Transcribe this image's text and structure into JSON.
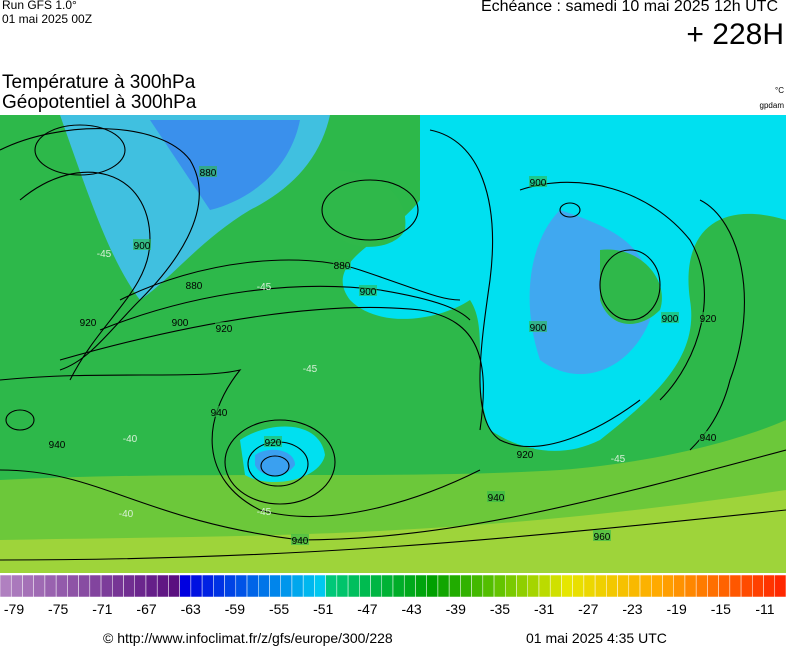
{
  "header": {
    "run": "Run GFS 1.0°",
    "run_date": "01 mai 2025 00Z",
    "valid": "Echéance : samedi 10 mai 2025 12h UTC",
    "lead": "+ 228H",
    "title_1": "Température à 300hPa",
    "title_2": "Géopotentiel à 300hPa",
    "unit_temp": "°C",
    "unit_geo": "gpdam"
  },
  "map": {
    "contour_labels": [
      "880",
      "900",
      "920",
      "880",
      "900",
      "920",
      "880",
      "900",
      "940",
      "940",
      "920",
      "940",
      "940",
      "960",
      "920",
      "940",
      "900",
      "900",
      "920",
      "900"
    ],
    "temp_labels": [
      "-45",
      "-45",
      "-40",
      "-40",
      "-45",
      "-45",
      "-45"
    ]
  },
  "scale": {
    "labels": [
      -79,
      -75,
      -71,
      -67,
      -63,
      -59,
      -55,
      -51,
      -47,
      -43,
      -39,
      -35,
      -31,
      -27,
      -23,
      -19,
      -15,
      -11
    ]
  },
  "footer": {
    "source": "© http://www.infoclimat.fr/z/gfs/europe/300/228",
    "generated": "01 mai 2025  4:35 UTC"
  }
}
